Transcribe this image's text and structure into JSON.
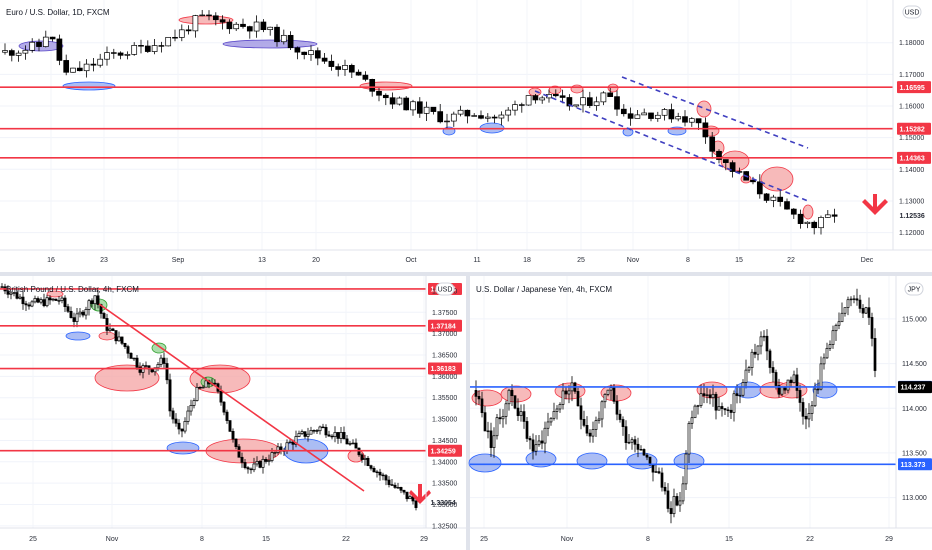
{
  "chart_data": [
    {
      "id": "eurusd",
      "type": "candlestick",
      "title": "Euro / U.S. Dollar, 1D, FXCM",
      "currency_badge": "USD",
      "x_ticks": [
        "16",
        "23",
        "Sep",
        "13",
        "20",
        "Oct",
        "11",
        "18",
        "25",
        "Nov",
        "8",
        "15",
        "22",
        "Dec"
      ],
      "y_ticks": [
        1.12,
        1.13,
        1.14,
        1.15,
        1.16,
        1.17,
        1.18
      ],
      "y_tick_labels": [
        "1.12000",
        "1.13000",
        "1.14000",
        "1.15000",
        "1.16000",
        "1.17000",
        "1.18000"
      ],
      "ylim": [
        1.1145,
        1.1935
      ],
      "horizontal_levels": [
        {
          "value": 1.16595,
          "label": "1.16595",
          "color": "#f23645"
        },
        {
          "value": 1.15282,
          "label": "1.15282",
          "color": "#f23645"
        },
        {
          "value": 1.14363,
          "label": "1.14363",
          "color": "#f23645"
        }
      ],
      "current_price": {
        "value": 1.12536,
        "label": "1.12536"
      },
      "trend_arrow": "down",
      "channel": "descending dashed channel (blue)"
    },
    {
      "id": "gbpusd",
      "type": "candlestick",
      "title": "British Pound / U.S. Dollar, 4h, FXCM",
      "currency_badge": "USD",
      "x_ticks": [
        "25",
        "Nov",
        "8",
        "15",
        "22",
        "29"
      ],
      "y_ticks": [
        1.325,
        1.33,
        1.335,
        1.34,
        1.345,
        1.35,
        1.355,
        1.36,
        1.365,
        1.37,
        1.375,
        1.38
      ],
      "y_tick_labels": [
        "1.32500",
        "1.33000",
        "1.33500",
        "1.34000",
        "1.34500",
        "1.35000",
        "1.35500",
        "1.36000",
        "1.36500",
        "1.37000",
        "1.37500",
        "1.38000"
      ],
      "ylim": [
        1.3245,
        1.3835
      ],
      "horizontal_levels": [
        {
          "value": 1.38046,
          "label": "1.38046",
          "color": "#f23645"
        },
        {
          "value": 1.37184,
          "label": "1.37184",
          "color": "#f23645"
        },
        {
          "value": 1.36183,
          "label": "1.36183",
          "color": "#f23645"
        },
        {
          "value": 1.34259,
          "label": "1.34259",
          "color": "#f23645"
        }
      ],
      "current_price": {
        "value": 1.33054,
        "label": "1.33054"
      },
      "trend_arrow": "down",
      "trendline": "descending red trendline"
    },
    {
      "id": "usdjpy",
      "type": "candlestick",
      "title": "U.S. Dollar / Japanese Yen, 4h, FXCM",
      "currency_badge": "JPY",
      "x_ticks": [
        "25",
        "Nov",
        "8",
        "15",
        "22",
        "29"
      ],
      "y_ticks": [
        113.0,
        113.5,
        114.0,
        114.5,
        115.0
      ],
      "y_tick_labels": [
        "113.000",
        "113.500",
        "114.000",
        "114.500",
        "115.000"
      ],
      "ylim": [
        112.66,
        115.48
      ],
      "horizontal_levels": [
        {
          "value": 114.239,
          "label": "114.239",
          "color": "#2962ff"
        },
        {
          "value": 113.373,
          "label": "113.373",
          "color": "#2962ff"
        }
      ],
      "current_price": {
        "value": 114.237,
        "label": "114.237"
      }
    }
  ],
  "colors": {
    "level_red": "#f23645",
    "level_blue": "#2962ff",
    "candle_up_fill": "#ffffff",
    "candle_down_fill": "#000000",
    "ellipse_red": "#f4a3a3",
    "ellipse_blue": "#8fa7f0",
    "ellipse_purple": "#9a8fe0",
    "ellipse_green": "#8fd18f",
    "channel_line": "#3f3fc0"
  }
}
